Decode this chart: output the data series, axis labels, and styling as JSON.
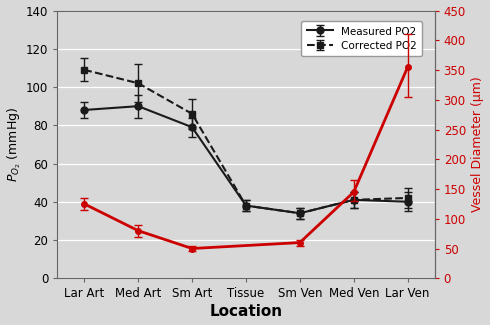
{
  "categories": [
    "Lar Art",
    "Med Art",
    "Sm Art",
    "Tissue",
    "Sm Ven",
    "Med Ven",
    "Lar Ven"
  ],
  "measured_po2": [
    88,
    90,
    79,
    38,
    34,
    41,
    40
  ],
  "measured_po2_err": [
    4,
    6,
    5,
    3,
    3,
    4,
    5
  ],
  "corrected_po2": [
    109,
    102,
    86,
    38,
    34,
    41,
    42
  ],
  "corrected_po2_err": [
    6,
    10,
    8,
    3,
    3,
    4,
    5
  ],
  "vessel_diameter": [
    125,
    80,
    50,
    null,
    60,
    145,
    355
  ],
  "vessel_diameter_err_low": [
    10,
    10,
    5,
    null,
    5,
    15,
    50
  ],
  "vessel_diameter_err_high": [
    10,
    10,
    5,
    null,
    5,
    20,
    55
  ],
  "left_ylim": [
    0,
    140
  ],
  "left_yticks": [
    0,
    20,
    40,
    60,
    80,
    100,
    120,
    140
  ],
  "right_ylim": [
    0,
    450
  ],
  "right_yticks": [
    0,
    50,
    100,
    150,
    200,
    250,
    300,
    350,
    400,
    450
  ],
  "xlabel": "Location",
  "ylabel_left": "P_O2 (mmHg)",
  "ylabel_right": "Vessel Diameter (μm)",
  "legend_measured": "Measured PO2",
  "legend_corrected": "Corrected PO2",
  "color_black": "#1a1a1a",
  "color_red": "#cc0000",
  "background_color": "#d8d8d8",
  "plot_bg": "#d8d8d8",
  "grid_color": "#ffffff",
  "spine_color": "#666666"
}
